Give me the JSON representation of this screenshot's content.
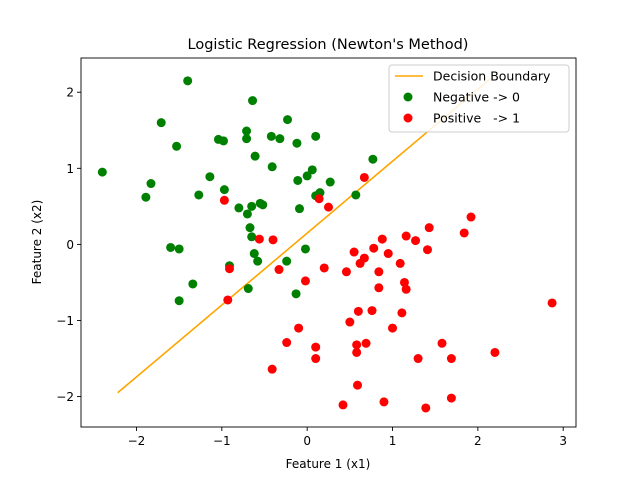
{
  "chart_data": {
    "type": "scatter",
    "title": "Logistic Regression (Newton's Method)",
    "xlabel": "Feature 1 (x1)",
    "ylabel": "Feature 2 (x2)",
    "xlim": [
      -2.65,
      3.15
    ],
    "ylim": [
      -2.4,
      2.45
    ],
    "xticks": [
      -2,
      -1,
      0,
      1,
      2,
      3
    ],
    "yticks": [
      -2,
      -1,
      0,
      1,
      2
    ],
    "grid": false,
    "legend_position": "top-right",
    "colors": {
      "line": "#ffa500",
      "negative": "#008000",
      "positive": "#ff0000"
    },
    "series": [
      {
        "name": "Decision Boundary",
        "kind": "line",
        "color": "#ffa500",
        "points": [
          [
            -2.22,
            -1.95
          ],
          [
            2.15,
            2.18
          ]
        ]
      },
      {
        "name": "Negative -> 0",
        "kind": "scatter",
        "color": "#008000",
        "points": [
          [
            -2.4,
            0.95
          ],
          [
            -1.4,
            2.15
          ],
          [
            -1.71,
            1.6
          ],
          [
            -1.53,
            1.29
          ],
          [
            -1.83,
            0.8
          ],
          [
            -1.89,
            0.62
          ],
          [
            -1.6,
            -0.04
          ],
          [
            -1.5,
            -0.06
          ],
          [
            -1.34,
            -0.52
          ],
          [
            -1.5,
            -0.74
          ],
          [
            -1.27,
            0.65
          ],
          [
            -1.14,
            0.89
          ],
          [
            -1.04,
            1.38
          ],
          [
            -0.98,
            1.36
          ],
          [
            -0.97,
            0.72
          ],
          [
            -0.91,
            -0.28
          ],
          [
            -0.8,
            0.48
          ],
          [
            -0.7,
            0.4
          ],
          [
            -0.71,
            1.49
          ],
          [
            -0.71,
            1.39
          ],
          [
            -0.64,
            1.89
          ],
          [
            -0.61,
            1.16
          ],
          [
            -0.65,
            0.5
          ],
          [
            -0.67,
            0.22
          ],
          [
            -0.65,
            0.1
          ],
          [
            -0.62,
            -0.12
          ],
          [
            -0.58,
            -0.22
          ],
          [
            -0.55,
            0.54
          ],
          [
            -0.52,
            0.52
          ],
          [
            -0.69,
            -0.58
          ],
          [
            -0.42,
            1.42
          ],
          [
            -0.41,
            1.02
          ],
          [
            -0.32,
            1.39
          ],
          [
            -0.23,
            1.64
          ],
          [
            -0.24,
            -0.22
          ],
          [
            -0.12,
            1.33
          ],
          [
            -0.11,
            0.84
          ],
          [
            -0.09,
            0.47
          ],
          [
            -0.13,
            -0.65
          ],
          [
            0.0,
            0.9
          ],
          [
            -0.02,
            -0.06
          ],
          [
            0.06,
            0.98
          ],
          [
            0.1,
            1.42
          ],
          [
            0.1,
            0.64
          ],
          [
            0.15,
            0.68
          ],
          [
            0.27,
            0.82
          ],
          [
            0.77,
            1.12
          ],
          [
            0.57,
            0.65
          ]
        ]
      },
      {
        "name": "Positive   -> 1",
        "kind": "scatter",
        "color": "#ff0000",
        "points": [
          [
            -0.97,
            0.58
          ],
          [
            -0.91,
            -0.32
          ],
          [
            -0.93,
            -0.73
          ],
          [
            -0.56,
            0.07
          ],
          [
            -0.4,
            0.06
          ],
          [
            -0.33,
            -0.33
          ],
          [
            -0.02,
            -0.48
          ],
          [
            0.14,
            0.6
          ],
          [
            0.25,
            0.49
          ],
          [
            0.67,
            0.88
          ],
          [
            0.2,
            -0.31
          ],
          [
            0.46,
            -0.36
          ],
          [
            0.55,
            -0.1
          ],
          [
            0.62,
            -0.25
          ],
          [
            0.67,
            -0.18
          ],
          [
            0.78,
            -0.05
          ],
          [
            0.88,
            0.07
          ],
          [
            0.95,
            -0.12
          ],
          [
            0.84,
            -0.36
          ],
          [
            0.84,
            -0.57
          ],
          [
            1.09,
            -0.25
          ],
          [
            1.16,
            0.11
          ],
          [
            1.14,
            -0.5
          ],
          [
            1.16,
            -0.59
          ],
          [
            1.27,
            0.05
          ],
          [
            1.43,
            0.22
          ],
          [
            1.41,
            -0.07
          ],
          [
            1.84,
            0.15
          ],
          [
            1.92,
            0.36
          ],
          [
            2.87,
            -0.77
          ],
          [
            -0.24,
            -1.29
          ],
          [
            -0.1,
            -1.1
          ],
          [
            0.1,
            -1.35
          ],
          [
            0.1,
            -1.5
          ],
          [
            0.5,
            -1.02
          ],
          [
            0.6,
            -0.88
          ],
          [
            0.76,
            -0.87
          ],
          [
            1.0,
            -1.1
          ],
          [
            1.11,
            -0.9
          ],
          [
            0.58,
            -1.32
          ],
          [
            0.58,
            -1.42
          ],
          [
            0.69,
            -1.3
          ],
          [
            1.3,
            -1.5
          ],
          [
            1.58,
            -1.3
          ],
          [
            1.69,
            -1.5
          ],
          [
            2.2,
            -1.42
          ],
          [
            -0.41,
            -1.64
          ],
          [
            0.59,
            -1.85
          ],
          [
            0.42,
            -2.11
          ],
          [
            0.9,
            -2.07
          ],
          [
            1.39,
            -2.15
          ],
          [
            1.69,
            -2.02
          ]
        ]
      }
    ]
  }
}
